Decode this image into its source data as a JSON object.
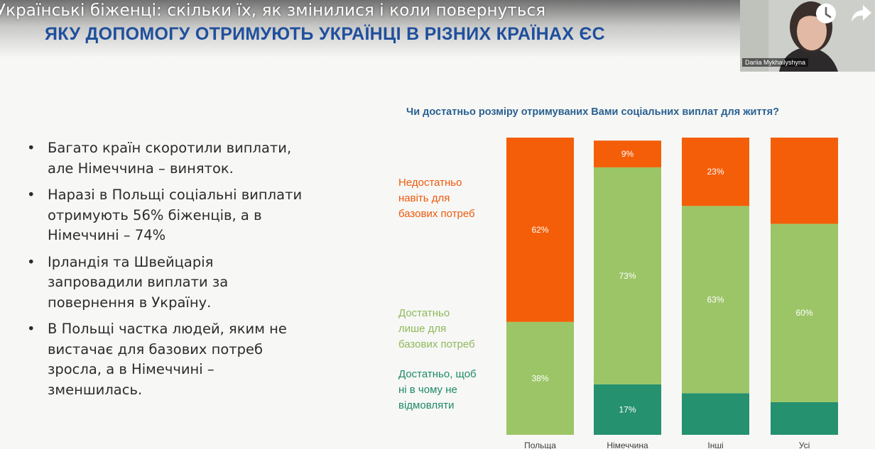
{
  "video": {
    "title": "Українські біженці: скільки їх, як змінилися і коли повернуться",
    "watch_later_icon": "clock-icon",
    "share_icon": "share-arrow-icon",
    "speaker_name": "Dariia Mykhailyshyna"
  },
  "slide": {
    "title": "ЯКУ ДОПОМОГУ ОТРИМУЮТЬ УКРАЇНЦІ В РІЗНИХ КРАЇНАХ ЄС",
    "bullets": [
      "Багато країн скоротили виплати, але Німеччина – виняток.",
      "Наразі в Польщі соціальні виплати отримують 56% біженців, а в Німеччині – 74%",
      "Ірландія та Швейцарія запровадили виплати за повернення в Україну.",
      "В Польщі частка людей, яким не вистачає для базових потреб зросла, а в Німеччині – зменшилась."
    ]
  },
  "chart_data": {
    "type": "bar",
    "stacked": true,
    "title": "Чи достатньо розміру отримуваних Вами соціальних виплат для життя?",
    "categories": [
      "Польща",
      "Німеччина",
      "Інші",
      "Усі"
    ],
    "series": [
      {
        "name": "Достатньо, щоб\nні в чому не\nвідмовляти",
        "color": "#25916e",
        "values": [
          0,
          17,
          14,
          11
        ],
        "labels": [
          "",
          "17%",
          "",
          ""
        ]
      },
      {
        "name": "Достатньо\nлише для\nбазових потреб",
        "color": "#9cc567",
        "values": [
          38,
          73,
          63,
          60
        ],
        "labels": [
          "38%",
          "73%",
          "63%",
          "60%"
        ]
      },
      {
        "name": "Недостатньо\nнавіть для\nбазових потреб",
        "color": "#f45e08",
        "values": [
          62,
          9,
          23,
          29
        ],
        "labels": [
          "62%",
          "9%",
          "23%",
          ""
        ]
      }
    ],
    "ylim": [
      0,
      100
    ],
    "legend": "left",
    "grid": false
  }
}
